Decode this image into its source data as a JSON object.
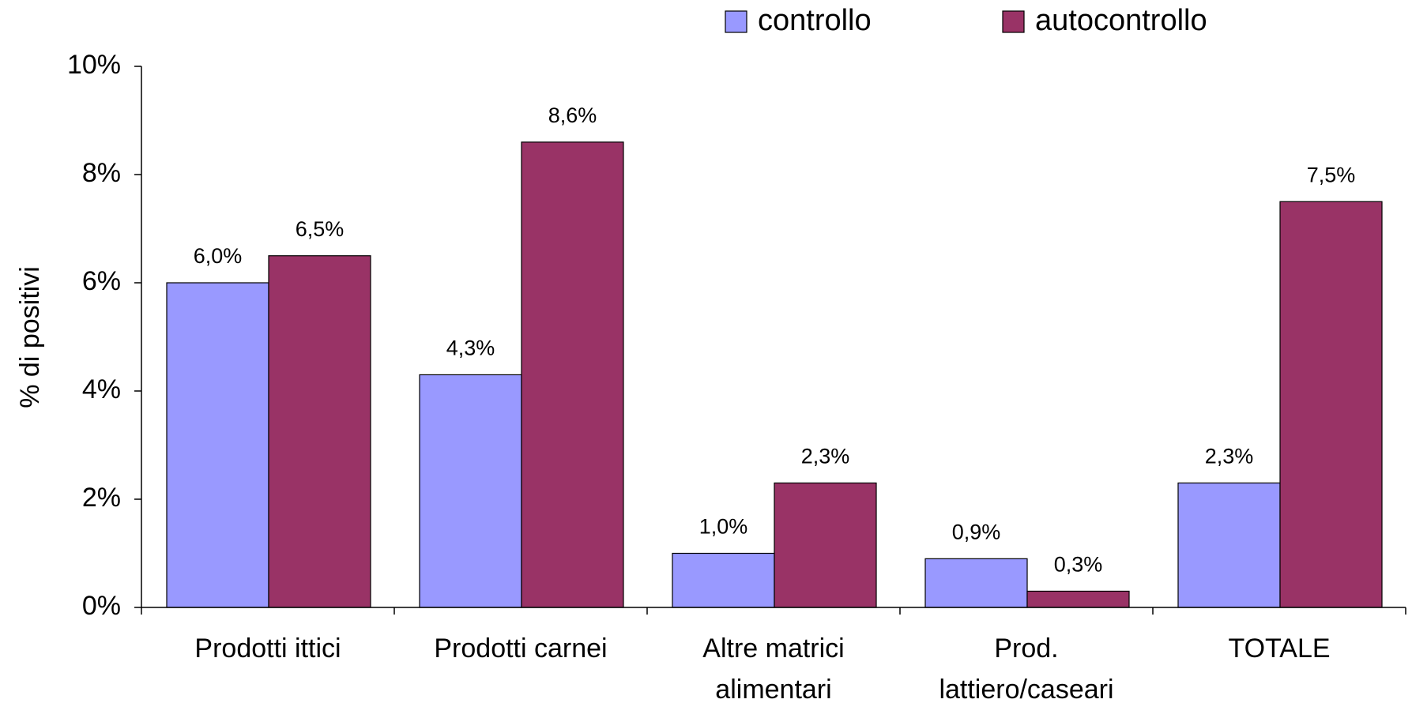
{
  "chart_data": {
    "type": "bar",
    "y_label": "% di positivi",
    "categories": [
      "Prodotti ittici",
      "Prodotti carnei",
      "Altre matrici alimentari",
      "Prod. lattiero/caseari",
      "TOTALE"
    ],
    "series": [
      {
        "name": "controllo",
        "color": "#9999ff",
        "values": [
          6.0,
          4.3,
          1.0,
          0.9,
          2.3
        ],
        "value_labels": [
          "6,0%",
          "4,3%",
          "1,0%",
          "0,9%",
          "2,3%"
        ]
      },
      {
        "name": "autocontrollo",
        "color": "#993366",
        "values": [
          6.5,
          8.6,
          2.3,
          0.3,
          7.5
        ],
        "value_labels": [
          "6,5%",
          "8,6%",
          "2,3%",
          "0,3%",
          "7,5%"
        ]
      }
    ],
    "ylim": [
      0,
      10
    ],
    "yticks": [
      {
        "value": 0,
        "label": "0%"
      },
      {
        "value": 2,
        "label": "2%"
      },
      {
        "value": 4,
        "label": "4%"
      },
      {
        "value": 6,
        "label": "6%"
      },
      {
        "value": 8,
        "label": "8%"
      },
      {
        "value": 10,
        "label": "10%"
      }
    ],
    "legend": "top"
  }
}
